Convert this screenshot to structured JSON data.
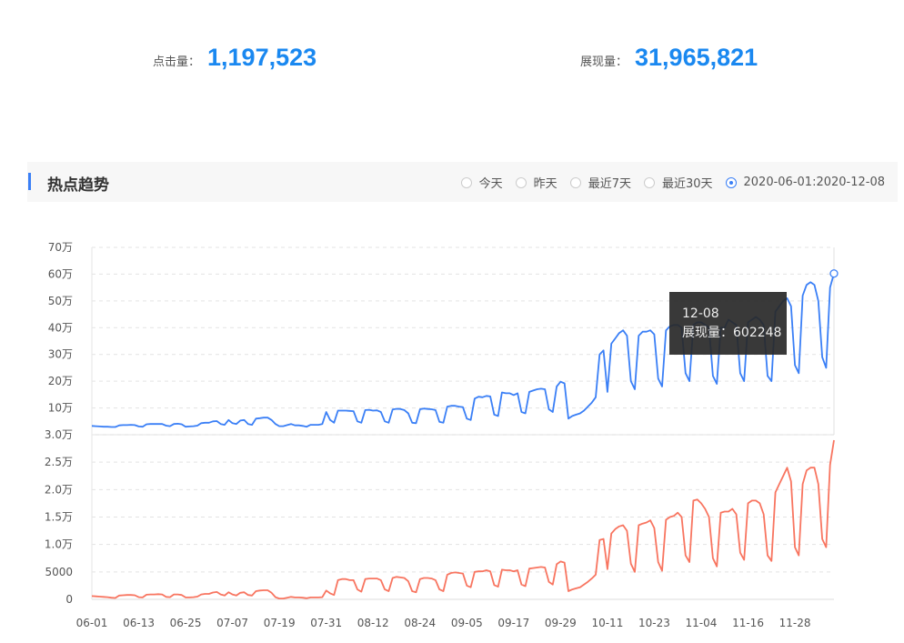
{
  "stats": {
    "clicks_label": "点击量：",
    "clicks_value": "1,197,523",
    "impressions_label": "展现量：",
    "impressions_value": "31,965,821"
  },
  "section": {
    "title": "热点趋势",
    "range_options": [
      {
        "label": "今天",
        "selected": false
      },
      {
        "label": "昨天",
        "selected": false
      },
      {
        "label": "最近7天",
        "selected": false
      },
      {
        "label": "最近30天",
        "selected": false
      },
      {
        "label": "2020-06-01:2020-12-08",
        "selected": true
      }
    ]
  },
  "tooltip": {
    "date": "12-08",
    "series_label": "展现量",
    "separator": "：",
    "value": "602248"
  },
  "chart_data": [
    {
      "type": "line",
      "series": [
        {
          "name": "展现量",
          "color": "#3a7ff6",
          "unit": "万",
          "values": [
            3.3,
            3.2,
            3.1,
            3.0,
            3.0,
            2.9,
            2.9,
            3.5,
            3.6,
            3.6,
            3.7,
            3.6,
            3.1,
            3.0,
            3.9,
            4.0,
            4.0,
            4.0,
            4.0,
            3.4,
            3.2,
            4.0,
            4.1,
            3.9,
            3.0,
            3.1,
            3.2,
            3.4,
            4.3,
            4.5,
            4.5,
            5.0,
            5.1,
            4.0,
            3.7,
            5.5,
            4.3,
            4.0,
            5.3,
            5.5,
            4.0,
            3.7,
            6.0,
            6.2,
            6.4,
            6.4,
            5.5,
            4.0,
            3.2,
            3.2,
            3.6,
            4.0,
            3.5,
            3.5,
            3.3,
            3.0,
            3.7,
            3.7,
            3.7,
            4.0,
            8.5,
            5.5,
            4.5,
            9.0,
            9.0,
            9.0,
            8.9,
            8.8,
            5.0,
            4.5,
            9.2,
            9.3,
            9.0,
            9.1,
            8.5,
            5.0,
            4.5,
            9.4,
            9.7,
            9.6,
            9.2,
            8.0,
            4.5,
            4.3,
            9.5,
            9.8,
            9.6,
            9.5,
            9.2,
            4.8,
            4.5,
            10.5,
            10.8,
            10.8,
            10.5,
            10.3,
            6.0,
            5.5,
            13.5,
            14.2,
            14.0,
            14.5,
            14.3,
            7.5,
            7.0,
            15.8,
            15.5,
            15.5,
            14.8,
            15.5,
            8.5,
            8.0,
            16.0,
            16.5,
            17.0,
            17.2,
            17.0,
            9.5,
            8.5,
            18.0,
            19.8,
            19.2,
            6.0,
            7.0,
            7.5,
            8.0,
            9.0,
            10.5,
            12.0,
            14.0,
            30.0,
            31.5,
            16.0,
            34.0,
            36.0,
            38.0,
            39.0,
            37.0,
            20.0,
            17.0,
            37.0,
            38.5,
            38.5,
            39.0,
            37.5,
            21.0,
            18.0,
            39.0,
            40.5,
            41.0,
            41.0,
            40.0,
            23.0,
            20.0,
            41.0,
            42.0,
            42.0,
            41.0,
            40.0,
            22.0,
            19.0,
            40.0,
            40.0,
            43.0,
            42.0,
            41.0,
            23.0,
            20.0,
            42.0,
            43.0,
            44.0,
            43.0,
            41.0,
            22.0,
            20.0,
            46.0,
            48.0,
            50.0,
            51.0,
            48.0,
            26.0,
            23.0,
            52.0,
            56.0,
            57.0,
            56.0,
            50.0,
            29.0,
            25.0,
            55.0,
            60.2248
          ]
        }
      ],
      "ylim": [
        0,
        70
      ],
      "yticks": [
        "70万",
        "60万",
        "50万",
        "40万",
        "30万",
        "20万",
        "10万"
      ],
      "grid": true
    },
    {
      "type": "line",
      "series": [
        {
          "name": "点击量",
          "color": "#f87560",
          "values": [
            600,
            550,
            500,
            450,
            400,
            300,
            250,
            700,
            750,
            800,
            800,
            750,
            400,
            350,
            850,
            900,
            900,
            950,
            900,
            450,
            400,
            900,
            900,
            800,
            350,
            350,
            400,
            500,
            900,
            1000,
            1000,
            1250,
            1350,
            900,
            700,
            1300,
            900,
            700,
            1200,
            1300,
            800,
            700,
            1500,
            1600,
            1650,
            1650,
            1200,
            400,
            150,
            150,
            300,
            450,
            350,
            350,
            300,
            200,
            350,
            350,
            350,
            400,
            1600,
            1100,
            800,
            3500,
            3700,
            3700,
            3500,
            3500,
            1800,
            1400,
            3700,
            3800,
            3800,
            3800,
            3500,
            1800,
            1500,
            3900,
            4100,
            4000,
            3900,
            3300,
            1500,
            1300,
            3700,
            3900,
            3900,
            3800,
            3500,
            1800,
            1500,
            4500,
            4800,
            4900,
            4800,
            4700,
            2500,
            2200,
            5000,
            5100,
            5100,
            5300,
            5100,
            2600,
            2300,
            5400,
            5300,
            5300,
            5100,
            5300,
            2700,
            2400,
            5600,
            5700,
            5800,
            5900,
            5800,
            3200,
            2700,
            6400,
            6900,
            6700,
            1500,
            1800,
            2000,
            2200,
            2700,
            3200,
            3800,
            4500,
            10800,
            11000,
            5500,
            12000,
            12800,
            13300,
            13500,
            12500,
            6500,
            5000,
            13500,
            13800,
            14000,
            14400,
            13000,
            6800,
            5200,
            14500,
            15000,
            15200,
            15800,
            15000,
            8000,
            6800,
            18000,
            18200,
            17500,
            16500,
            15000,
            7500,
            6000,
            15800,
            16000,
            16000,
            16500,
            15500,
            8500,
            7200,
            17500,
            18000,
            18000,
            17500,
            15500,
            8000,
            7000,
            19500,
            21000,
            22500,
            24000,
            21500,
            9500,
            8000,
            21000,
            23500,
            24000,
            24000,
            21000,
            11000,
            9500,
            24500,
            29000
          ]
        }
      ],
      "ylim": [
        0,
        30000
      ],
      "yticks": [
        "3.0万",
        "2.5万",
        "2.0万",
        "1.5万",
        "1.0万",
        "5000",
        "0"
      ],
      "grid": true,
      "x_start": "2020-06-01",
      "x_end": "2020-12-08",
      "xticks": [
        "06-01",
        "06-13",
        "06-25",
        "07-07",
        "07-19",
        "07-31",
        "08-12",
        "08-24",
        "09-05",
        "09-17",
        "09-29",
        "10-11",
        "10-23",
        "11-04",
        "11-16",
        "11-28"
      ]
    }
  ]
}
